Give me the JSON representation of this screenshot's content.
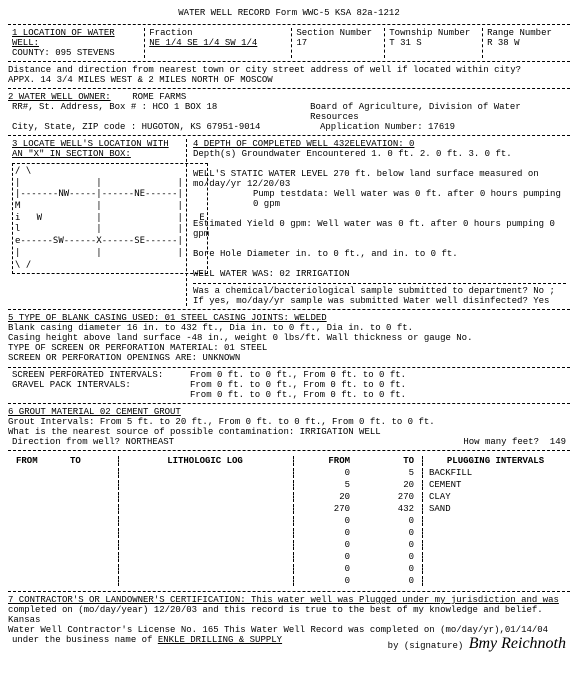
{
  "form_title": "WATER WELL RECORD  Form WWC-5  KSA 82a-1212",
  "s1": {
    "label": "1 LOCATION OF WATER WELL:",
    "county_label": "COUNTY:",
    "county": "095 STEVENS",
    "fraction_label": "Fraction",
    "fraction": "NE   1/4 SE   1/4 SW   1/4",
    "section_label": "Section Number",
    "section": "17",
    "township_label": "Township Number",
    "township": "T 31     S",
    "range_label": "Range Number",
    "range": "R 38    W",
    "dist_q": "Distance and direction from nearest town or city street address of well if located within city?",
    "dist_a": "APPX. 14 3/4 MILES WEST & 2 MILES NORTH OF MOSCOW"
  },
  "s2": {
    "label": "2 WATER WELL OWNER:",
    "owner": "ROME FARMS",
    "addr_label": "RR#, St. Address, Box # :",
    "addr": "HCO 1 BOX 18",
    "board": "Board of Agriculture, Division of Water Resources",
    "city_label": "City, State, ZIP code  :",
    "city": "HUGOTON, KS    67951-9014",
    "app_label": "Application Number:",
    "app": "17619"
  },
  "s3": {
    "label": "3 LOCATE WELL'S LOCATION WITH",
    "label2": "AN \"X\" IN SECTION BOX:",
    "grid": "/ \\\n|              |              |\n|-------NW-----|------NE------|\nM              |              |\ni   W          |              |   E\nl              |              |\ne------SW------X------SE------|\n|              |              |\n\\ /"
  },
  "s4": {
    "label": "4 DEPTH OF COMPLETED WELL   432ELEVATION:   0",
    "depth": "Depth(s) Groundwater Encountered     1.     0 ft.   2.     0 ft.   3.     0 ft.",
    "static": "WELL'S STATIC WATER LEVEL   270 ft. below land surface measured on mo/day/yr  12/20/03",
    "pump": "Pump testdata:  Well water was        0 ft. after    0 hours pumping    0 gpm",
    "yield": "Estimated Yield     0 gpm: Well water was        0 ft. after    0 hours pumping    0 gpm",
    "bore": "Bore Hole Diameter           in. to     0 ft., and     in. to     0 ft.",
    "use": "WELL WATER WAS: 02 IRRIGATION",
    "chem": "Was a chemical/bacteriological sample submitted to department? No ;",
    "chem2": "If yes, mo/day/yr sample was submitted                    Water well disinfected? Yes"
  },
  "s5": {
    "label": "5 TYPE OF BLANK CASING USED: 01 STEEL          CASING JOINTS: WELDED",
    "l1": "Blank casing diameter    16   in. to   432 ft.,  Dia     in. to     0 ft.,  Dia     in. to     0 ft.",
    "l2": "Casing height above land surface   -48 in.,  weight    0 lbs/ft.  Wall thickness or gauge No.",
    "l3": "TYPE OF SCREEN OR PERFORATION MATERIAL: 01 STEEL",
    "l4": "SCREEN OR PERFORATION OPENINGS ARE:    UNKNOWN",
    "screen_label": "SCREEN PERFORATED INTERVALS:",
    "screen1": "From      0 ft. to     0 ft., From      0 ft. to     0 ft.",
    "gravel_label": "GRAVEL PACK INTERVALS:",
    "gravel1": "From      0 ft. to     0 ft., From      0 ft. to     0 ft.",
    "gravel2": "From      0 ft. to     0 ft., From      0 ft. to     0 ft."
  },
  "s6": {
    "label": "6 GROUT MATERIAL    02 CEMENT GROUT",
    "l1": "Grout Intervals:  From     5 ft. to    20 ft.,  From     0 ft. to     0 ft.,  From     0 ft. to     0 ft.",
    "l2": "What is the nearest source of possible contamination: IRRIGATION WELL",
    "l3": "Direction from well? NORTHEAST",
    "feet_label": "How many feet?",
    "feet": "149"
  },
  "plugging": {
    "h_from": "FROM",
    "h_to": "TO",
    "h_log": "LITHOLOGIC LOG",
    "h_from2": "FROM",
    "h_to2": "TO",
    "h_int": "PLUGGING INTERVALS",
    "rows": [
      {
        "f": "0",
        "t": "5",
        "d": "BACKFILL"
      },
      {
        "f": "5",
        "t": "20",
        "d": "CEMENT"
      },
      {
        "f": "20",
        "t": "270",
        "d": "CLAY"
      },
      {
        "f": "270",
        "t": "432",
        "d": "SAND"
      },
      {
        "f": "0",
        "t": "0",
        "d": ""
      },
      {
        "f": "0",
        "t": "0",
        "d": ""
      },
      {
        "f": "0",
        "t": "0",
        "d": ""
      },
      {
        "f": "0",
        "t": "0",
        "d": ""
      },
      {
        "f": "0",
        "t": "0",
        "d": ""
      },
      {
        "f": "0",
        "t": "0",
        "d": ""
      }
    ]
  },
  "s7": {
    "l1": "7 CONTRACTOR'S OR LANDOWNER'S CERTIFICATION:  This water well was Plugged under my jurisdiction and was",
    "l2": "completed on (mo/day/year) 12/20/03 and this record is true to the best of my knowledge and belief.  Kansas",
    "l3": "Water Well Contractor's License No. 165        This Water Well Record was completed on (mo/day/yr),01/14/04",
    "l4a": "under the business name of",
    "l4b": "ENKLE DRILLING & SUPPLY",
    "l4c": "by (signature)",
    "sig": "Bmy Reichnoth"
  }
}
